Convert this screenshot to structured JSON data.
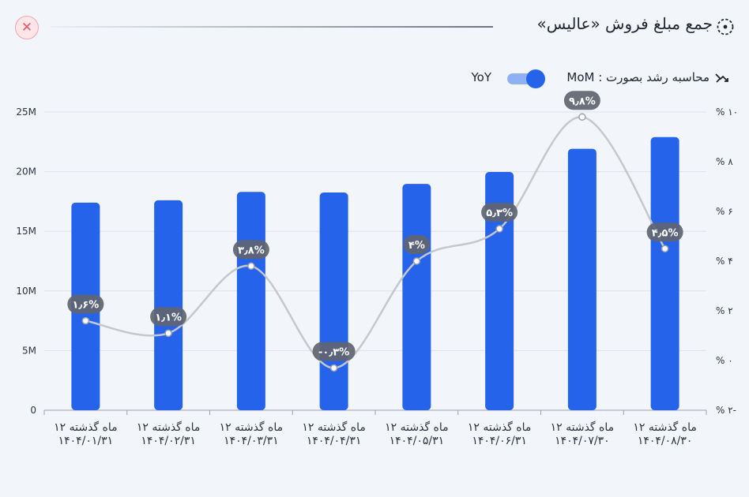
{
  "header": {
    "title": "جمع مبلغ فروش «عالیس»",
    "title_icon": "target-circle-icon",
    "close_icon": "close-icon",
    "close_label": "✕"
  },
  "toggle": {
    "label": "محاسبه رشد بصورت : MoM",
    "alt_label": "YoY",
    "icon": "trend-icon",
    "active": "MoM",
    "track_color": "#8fb0f5",
    "knob_color": "#2563eb"
  },
  "chart_data": {
    "type": "bar",
    "categories": [
      [
        "۱۲ ماه گذشته",
        "۱۴۰۴/۰۱/۳۱"
      ],
      [
        "۱۲ ماه گذشته",
        "۱۴۰۴/۰۲/۳۱"
      ],
      [
        "۱۲ ماه گذشته",
        "۱۴۰۴/۰۳/۳۱"
      ],
      [
        "۱۲ ماه گذشته",
        "۱۴۰۴/۰۴/۳۱"
      ],
      [
        "۱۲ ماه گذشته",
        "۱۴۰۴/۰۵/۳۱"
      ],
      [
        "۱۲ ماه گذشته",
        "۱۴۰۴/۰۶/۳۱"
      ],
      [
        "۱۲ ماه گذشته",
        "۱۴۰۴/۰۷/۳۰"
      ],
      [
        "۱۲ ماه گذشته",
        "۱۴۰۴/۰۸/۳۰"
      ]
    ],
    "bars": {
      "values": [
        17.4,
        17.6,
        18.3,
        18.25,
        18.97,
        19.97,
        21.92,
        22.9
      ],
      "color": "#2563eb",
      "axis": "left",
      "ylim": [
        0,
        25
      ],
      "ticks": [
        0,
        5,
        10,
        15,
        20,
        25
      ],
      "tick_labels": [
        "0",
        "5M",
        "10M",
        "15M",
        "20M",
        "25M"
      ]
    },
    "line": {
      "values": [
        1.6,
        1.1,
        3.8,
        -0.3,
        4.0,
        5.3,
        9.8,
        4.5
      ],
      "labels": [
        "۱٫۶%",
        "۱٫۱%",
        "۳٫۸%",
        "-۰٫۳%",
        "۴%",
        "۵٫۳%",
        "۹٫۸%",
        "۴٫۵%"
      ],
      "color": "#c4c7cc",
      "axis": "right",
      "ylim": [
        -2,
        10
      ],
      "ticks": [
        -2,
        0,
        2,
        4,
        6,
        8,
        10
      ],
      "tick_labels": [
        "% ۲-",
        "% ۰",
        "% ۲",
        "% ۴",
        "% ۶",
        "% ۸",
        "% ۱۰"
      ]
    },
    "grid": true,
    "legend": "none"
  }
}
